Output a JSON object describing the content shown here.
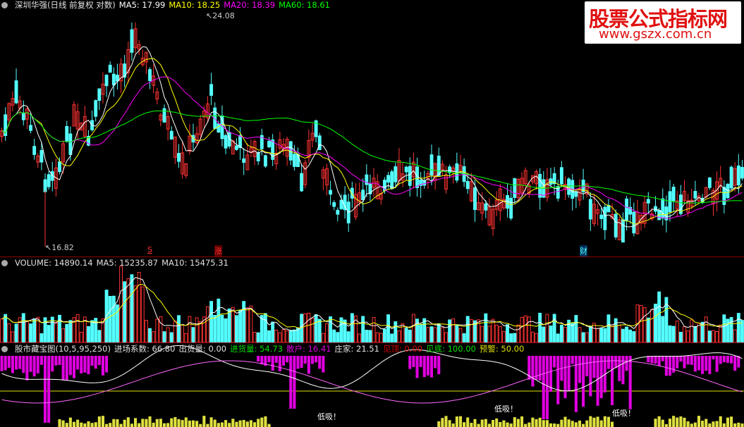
{
  "main": {
    "title": "深圳华强(日线 前复权 对数)",
    "ma5": "MA5: 17.99",
    "ma10": "MA10: 18.25",
    "ma20": "MA20: 18.39",
    "ma60": "MA60: 18.61",
    "high_label": "24.08",
    "low_label": "16.82",
    "markers": [
      "S",
      "涨",
      "财"
    ]
  },
  "volume": {
    "label": "VOLUME: 14890.14",
    "ma5": "MA5: 15235.87",
    "ma10": "MA10: 15475.31"
  },
  "indicator": {
    "name": "股市藏宝图(10,5,95,250)",
    "items": [
      {
        "text": "进场系数: 66.80",
        "color": "#e0e0e0"
      },
      {
        "text": "出货量: 0.00",
        "color": "#e0e0e0"
      },
      {
        "text": "进货量: 54.73",
        "color": "#00e000"
      },
      {
        "text": "散户: 16.41",
        "color": "#e000e0"
      },
      {
        "text": "庄家: 21.51",
        "color": "#e0e0e0"
      },
      {
        "text": "见顶: 0.00",
        "color": "#e00000"
      },
      {
        "text": "见底: 100.00",
        "color": "#00e000"
      },
      {
        "text": "预警: 50.00",
        "color": "#e0e000"
      }
    ],
    "buy_signals": [
      "低吸！",
      "低吸！",
      "低吸！"
    ]
  },
  "watermark": {
    "title": "股票公式指标网",
    "url": "www.gszx.com.cn"
  },
  "colors": {
    "up": "#ff3232",
    "down": "#54ffff",
    "ma5": "#ffffff",
    "ma10": "#ffff00",
    "ma20": "#ff00ff",
    "ma60": "#00ff00"
  }
}
